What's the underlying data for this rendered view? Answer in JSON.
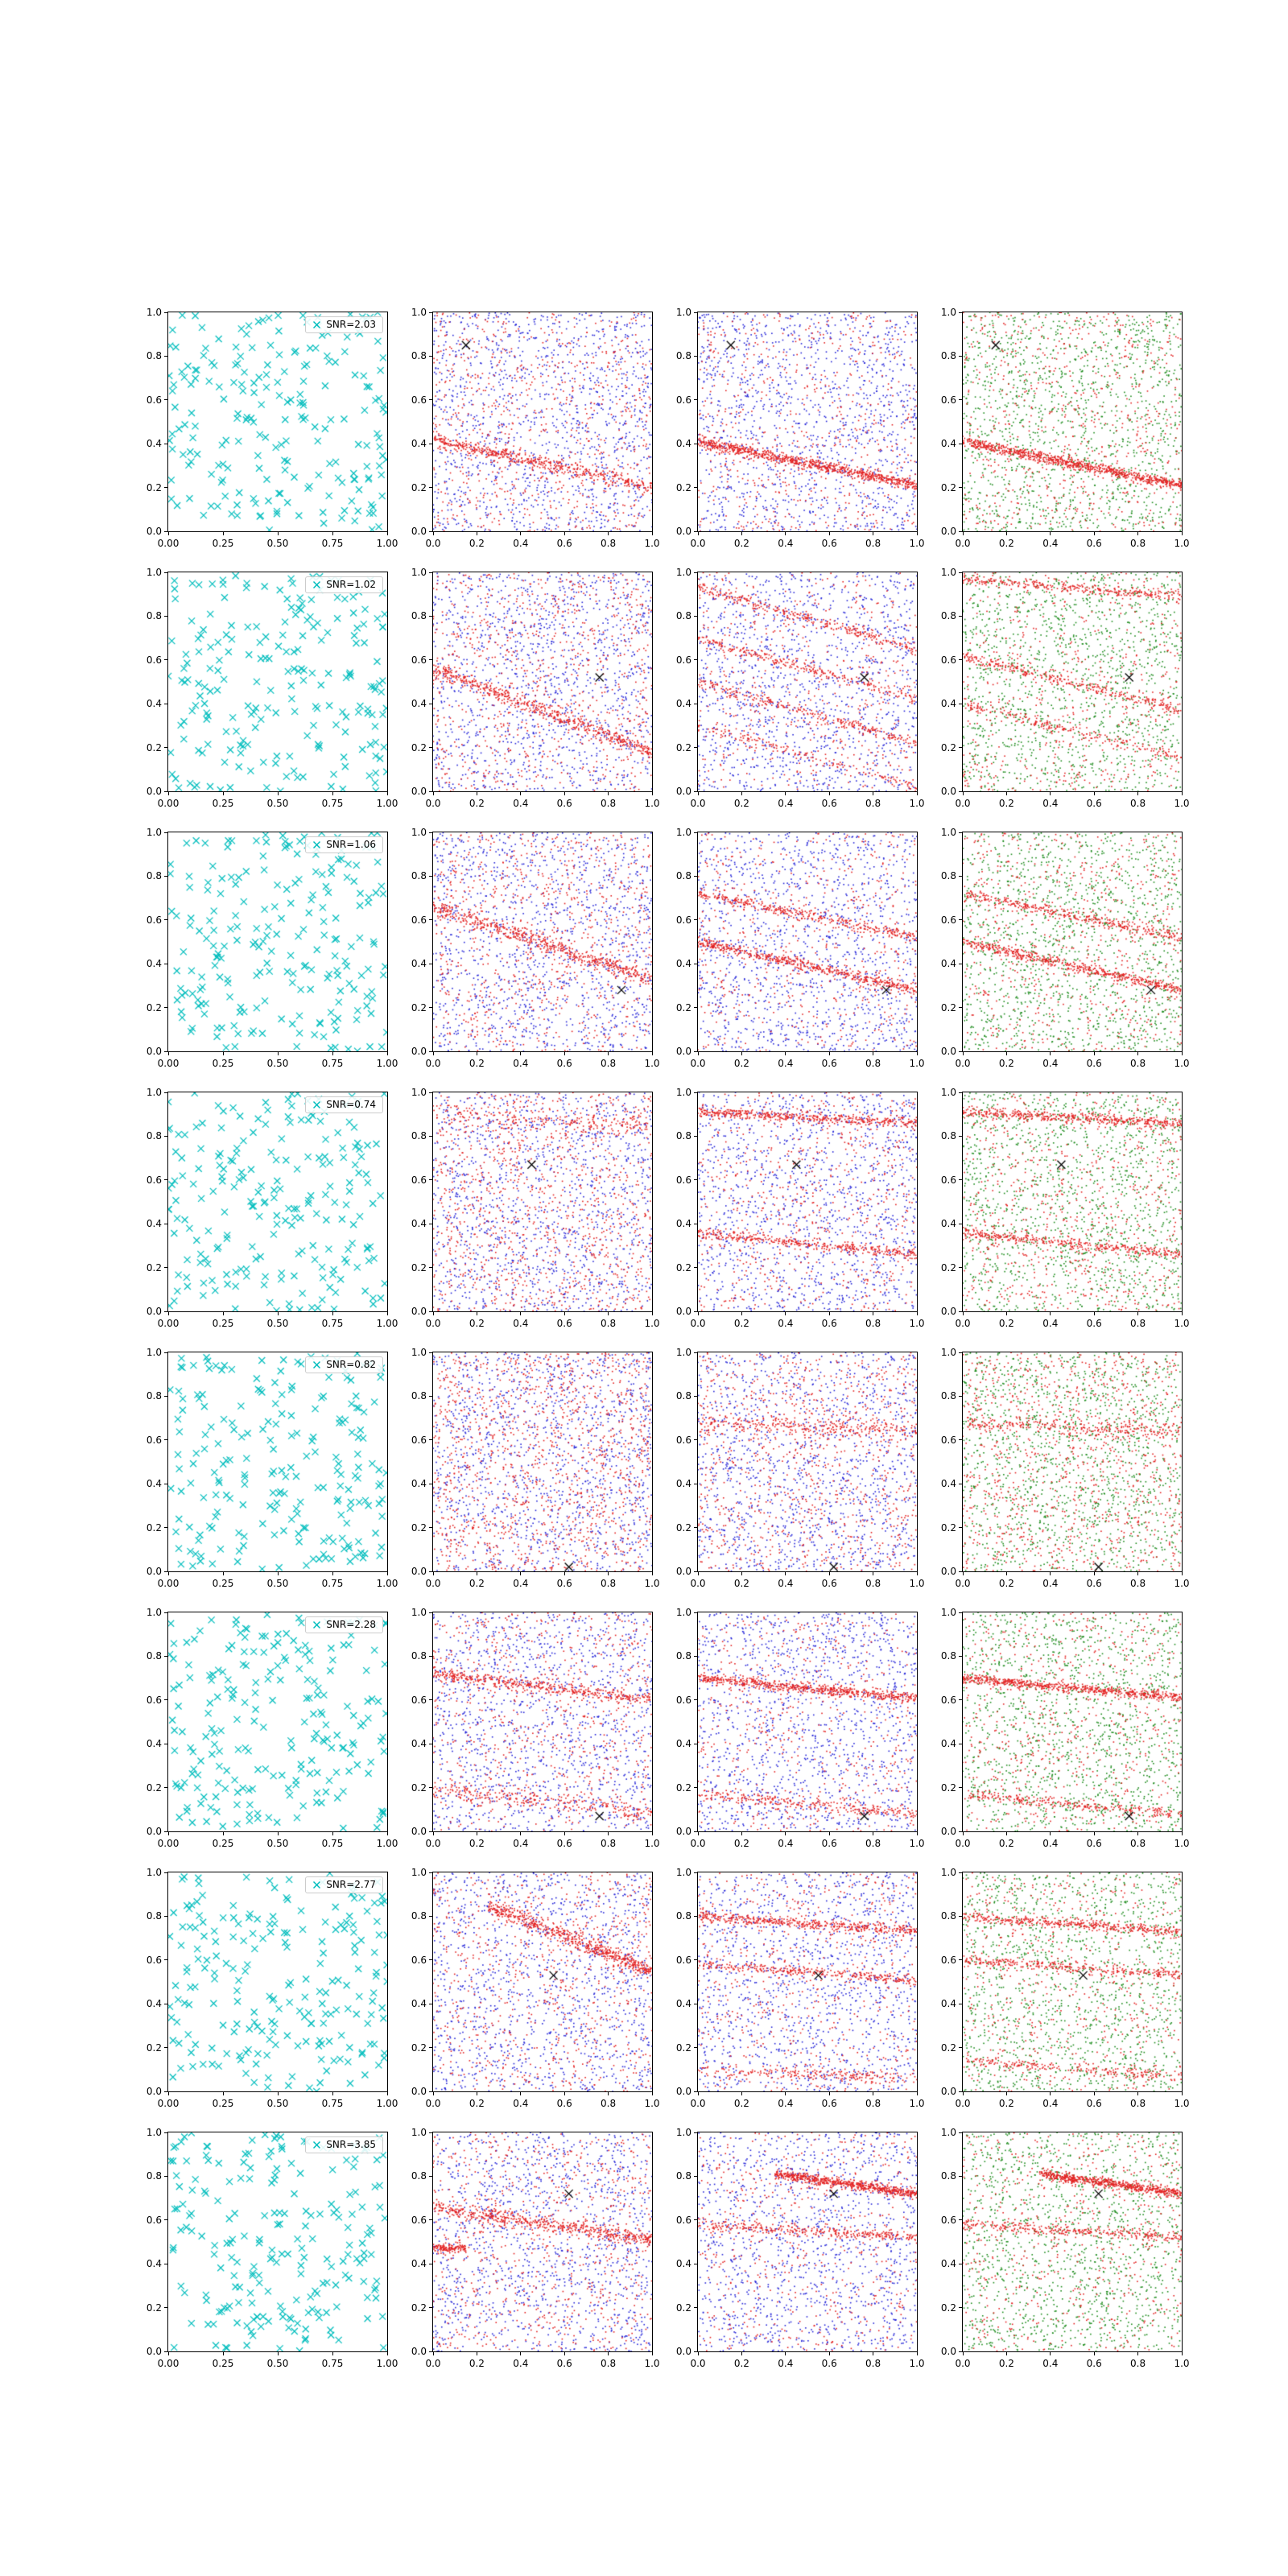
{
  "colors": {
    "cyan": "#00bdbd",
    "red": "#e32222",
    "blue": "#2727d8",
    "green": "#1e8c1e",
    "truth": "#000000",
    "axis": "#000000",
    "background": "#ffffff"
  },
  "axes": {
    "xlim": [
      0,
      1
    ],
    "ylim": [
      0,
      1
    ],
    "col1_xticklabels": [
      "0.00",
      "0.25",
      "0.50",
      "0.75",
      "1.00"
    ],
    "xticklabels": [
      "0.0",
      "0.2",
      "0.4",
      "0.6",
      "0.8",
      "1.0"
    ],
    "yticklabels": [
      "0.0",
      "0.2",
      "0.4",
      "0.6",
      "0.8",
      "1.0"
    ]
  },
  "chart_data": {
    "type": "scatter",
    "grid": {
      "nrows": 8,
      "ncols": 4
    },
    "xlim": [
      0,
      1
    ],
    "ylim": [
      0,
      1
    ],
    "description": "8x4 grid of square scatter panels. Column 1: cyan x-marker uniform scatter with an SNR legend. Columns 2-4: dense point clouds of red sample bands (shallow negative-slope stripes) over blue (cols 2-3) or green (col 4) noise, each with a black x truth marker.",
    "snr_values": [
      2.03,
      1.02,
      1.06,
      0.74,
      0.82,
      2.28,
      2.77,
      3.85
    ],
    "rows": [
      {
        "snr_label": "SNR=2.03",
        "snr": 2.03,
        "truth": {
          "x": 0.15,
          "y": 0.85
        },
        "panels": [
          {
            "kind": "data",
            "n": 210
          },
          {
            "kind": "samples",
            "noise": "blue",
            "noise_n": 1250,
            "red_noise_n": 750,
            "lines": [
              {
                "a": 0.42,
                "b": -0.22,
                "n": 500,
                "sd": 0.015
              }
            ]
          },
          {
            "kind": "samples",
            "noise": "blue",
            "noise_n": 1250,
            "red_noise_n": 600,
            "lines": [
              {
                "a": 0.41,
                "b": -0.2,
                "n": 800,
                "sd": 0.012
              }
            ]
          },
          {
            "kind": "samples",
            "noise": "green",
            "noise_n": 1350,
            "red_noise_n": 650,
            "lines": [
              {
                "a": 0.41,
                "b": -0.2,
                "n": 800,
                "sd": 0.012
              }
            ]
          }
        ]
      },
      {
        "snr_label": "SNR=1.02",
        "snr": 1.02,
        "truth": {
          "x": 0.76,
          "y": 0.52
        },
        "panels": [
          {
            "kind": "data",
            "n": 210
          },
          {
            "kind": "samples",
            "noise": "blue",
            "noise_n": 1250,
            "red_noise_n": 800,
            "lines": [
              {
                "a": 0.56,
                "b": -0.38,
                "n": 550,
                "sd": 0.018
              }
            ]
          },
          {
            "kind": "samples",
            "noise": "blue",
            "noise_n": 1250,
            "red_noise_n": 500,
            "lines": [
              {
                "a": 0.93,
                "b": -0.28,
                "n": 300,
                "sd": 0.012
              },
              {
                "a": 0.7,
                "b": -0.28,
                "n": 250,
                "sd": 0.012
              },
              {
                "a": 0.5,
                "b": -0.28,
                "n": 250,
                "sd": 0.012
              },
              {
                "a": 0.3,
                "b": -0.28,
                "n": 150,
                "sd": 0.012
              }
            ]
          },
          {
            "kind": "samples",
            "noise": "green",
            "noise_n": 1350,
            "red_noise_n": 550,
            "lines": [
              {
                "a": 0.97,
                "b": -0.08,
                "n": 300,
                "sd": 0.012
              },
              {
                "a": 0.62,
                "b": -0.25,
                "n": 300,
                "sd": 0.012
              },
              {
                "a": 0.4,
                "b": -0.25,
                "n": 200,
                "sd": 0.012
              }
            ]
          }
        ]
      },
      {
        "snr_label": "SNR=1.06",
        "snr": 1.06,
        "truth": {
          "x": 0.86,
          "y": 0.28
        },
        "panels": [
          {
            "kind": "data",
            "n": 210
          },
          {
            "kind": "samples",
            "noise": "blue",
            "noise_n": 1250,
            "red_noise_n": 800,
            "lines": [
              {
                "a": 0.66,
                "b": -0.33,
                "n": 550,
                "sd": 0.02
              }
            ]
          },
          {
            "kind": "samples",
            "noise": "blue",
            "noise_n": 1250,
            "red_noise_n": 550,
            "lines": [
              {
                "a": 0.72,
                "b": -0.2,
                "n": 350,
                "sd": 0.013
              },
              {
                "a": 0.5,
                "b": -0.22,
                "n": 500,
                "sd": 0.012
              }
            ]
          },
          {
            "kind": "samples",
            "noise": "green",
            "noise_n": 1350,
            "red_noise_n": 600,
            "lines": [
              {
                "a": 0.72,
                "b": -0.2,
                "n": 350,
                "sd": 0.013
              },
              {
                "a": 0.5,
                "b": -0.22,
                "n": 500,
                "sd": 0.012
              }
            ]
          }
        ]
      },
      {
        "snr_label": "SNR=0.74",
        "snr": 0.74,
        "truth": {
          "x": 0.45,
          "y": 0.67
        },
        "panels": [
          {
            "kind": "data",
            "n": 210
          },
          {
            "kind": "samples",
            "noise": "blue",
            "noise_n": 1250,
            "red_noise_n": 1100,
            "lines": [
              {
                "a": 0.9,
                "b": -0.06,
                "n": 200,
                "sd": 0.03
              }
            ]
          },
          {
            "kind": "samples",
            "noise": "blue",
            "noise_n": 1250,
            "red_noise_n": 650,
            "lines": [
              {
                "a": 0.91,
                "b": -0.05,
                "n": 450,
                "sd": 0.012
              },
              {
                "a": 0.36,
                "b": -0.1,
                "n": 350,
                "sd": 0.012
              }
            ]
          },
          {
            "kind": "samples",
            "noise": "green",
            "noise_n": 1350,
            "red_noise_n": 700,
            "lines": [
              {
                "a": 0.91,
                "b": -0.05,
                "n": 450,
                "sd": 0.012
              },
              {
                "a": 0.36,
                "b": -0.1,
                "n": 350,
                "sd": 0.012
              }
            ]
          }
        ]
      },
      {
        "snr_label": "SNR=0.82",
        "snr": 0.82,
        "truth": {
          "x": 0.62,
          "y": 0.02
        },
        "panels": [
          {
            "kind": "data",
            "n": 210
          },
          {
            "kind": "samples",
            "noise": "blue",
            "noise_n": 1300,
            "red_noise_n": 1300,
            "lines": []
          },
          {
            "kind": "samples",
            "noise": "blue",
            "noise_n": 1250,
            "red_noise_n": 950,
            "lines": [
              {
                "a": 0.68,
                "b": -0.04,
                "n": 250,
                "sd": 0.02
              }
            ]
          },
          {
            "kind": "samples",
            "noise": "green",
            "noise_n": 1350,
            "red_noise_n": 1000,
            "lines": [
              {
                "a": 0.68,
                "b": -0.04,
                "n": 250,
                "sd": 0.02
              }
            ]
          }
        ]
      },
      {
        "snr_label": "SNR=2.28",
        "snr": 2.28,
        "truth": {
          "x": 0.76,
          "y": 0.07
        },
        "panels": [
          {
            "kind": "data",
            "n": 210
          },
          {
            "kind": "samples",
            "noise": "blue",
            "noise_n": 1250,
            "red_noise_n": 700,
            "lines": [
              {
                "a": 0.72,
                "b": -0.12,
                "n": 450,
                "sd": 0.015
              },
              {
                "a": 0.2,
                "b": -0.12,
                "n": 250,
                "sd": 0.02
              }
            ]
          },
          {
            "kind": "samples",
            "noise": "blue",
            "noise_n": 1250,
            "red_noise_n": 550,
            "lines": [
              {
                "a": 0.7,
                "b": -0.09,
                "n": 600,
                "sd": 0.011
              },
              {
                "a": 0.17,
                "b": -0.09,
                "n": 250,
                "sd": 0.012
              }
            ]
          },
          {
            "kind": "samples",
            "noise": "green",
            "noise_n": 1350,
            "red_noise_n": 600,
            "lines": [
              {
                "a": 0.7,
                "b": -0.09,
                "n": 600,
                "sd": 0.011
              },
              {
                "a": 0.17,
                "b": -0.09,
                "n": 250,
                "sd": 0.012
              }
            ]
          }
        ]
      },
      {
        "snr_label": "SNR=2.77",
        "snr": 2.77,
        "truth": {
          "x": 0.55,
          "y": 0.53
        },
        "panels": [
          {
            "kind": "data",
            "n": 210
          },
          {
            "kind": "samples",
            "noise": "blue",
            "noise_n": 1250,
            "red_noise_n": 750,
            "lines": [
              {
                "a": 0.95,
                "b": -0.4,
                "n": 600,
                "sd": 0.02,
                "x0": 0.25,
                "x1": 1.0
              }
            ]
          },
          {
            "kind": "samples",
            "noise": "blue",
            "noise_n": 1250,
            "red_noise_n": 550,
            "lines": [
              {
                "a": 0.8,
                "b": -0.07,
                "n": 450,
                "sd": 0.011
              },
              {
                "a": 0.58,
                "b": -0.07,
                "n": 300,
                "sd": 0.012
              },
              {
                "a": 0.1,
                "b": -0.04,
                "n": 200,
                "sd": 0.013
              }
            ]
          },
          {
            "kind": "samples",
            "noise": "green",
            "noise_n": 1350,
            "red_noise_n": 550,
            "lines": [
              {
                "a": 0.8,
                "b": -0.07,
                "n": 400,
                "sd": 0.011
              },
              {
                "a": 0.6,
                "b": -0.07,
                "n": 300,
                "sd": 0.012
              },
              {
                "a": 0.14,
                "b": -0.07,
                "n": 200,
                "sd": 0.013
              }
            ]
          }
        ]
      },
      {
        "snr_label": "SNR=3.85",
        "snr": 3.85,
        "truth": {
          "x": 0.62,
          "y": 0.72
        },
        "panels": [
          {
            "kind": "data",
            "n": 210
          },
          {
            "kind": "samples",
            "noise": "blue",
            "noise_n": 1250,
            "red_noise_n": 750,
            "lines": [
              {
                "a": 0.66,
                "b": -0.15,
                "n": 550,
                "sd": 0.018
              },
              {
                "a": 0.47,
                "b": 0.0,
                "n": 120,
                "sd": 0.01,
                "x0": 0.0,
                "x1": 0.15
              }
            ]
          },
          {
            "kind": "samples",
            "noise": "blue",
            "noise_n": 1250,
            "red_noise_n": 550,
            "lines": [
              {
                "a": 0.86,
                "b": -0.14,
                "n": 600,
                "sd": 0.011,
                "x0": 0.35,
                "x1": 1.0
              },
              {
                "a": 0.58,
                "b": -0.06,
                "n": 300,
                "sd": 0.012
              }
            ]
          },
          {
            "kind": "samples",
            "noise": "green",
            "noise_n": 1350,
            "red_noise_n": 550,
            "lines": [
              {
                "a": 0.86,
                "b": -0.14,
                "n": 600,
                "sd": 0.011,
                "x0": 0.35,
                "x1": 1.0
              },
              {
                "a": 0.58,
                "b": -0.06,
                "n": 300,
                "sd": 0.012
              }
            ]
          }
        ]
      }
    ]
  }
}
